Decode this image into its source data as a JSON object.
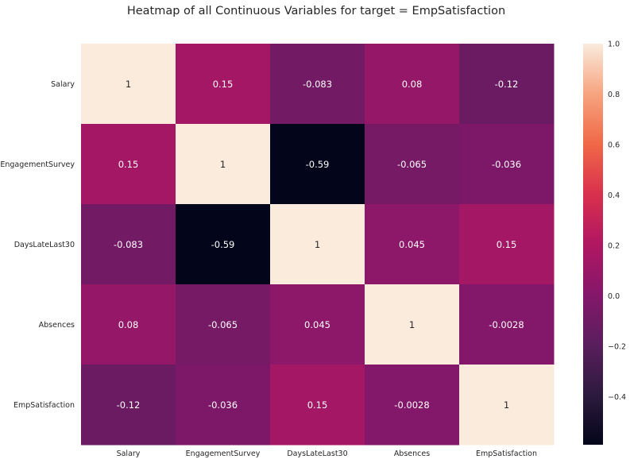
{
  "chart_data": {
    "type": "heatmap",
    "title": "Heatmap of all Continuous Variables for target = EmpSatisfaction",
    "xlabel": "",
    "ylabel": "",
    "x_categories": [
      "Salary",
      "EngagementSurvey",
      "DaysLateLast30",
      "Absences",
      "EmpSatisfaction"
    ],
    "y_categories": [
      "Salary",
      "EngagementSurvey",
      "DaysLateLast30",
      "Absences",
      "EmpSatisfaction"
    ],
    "values": [
      [
        1,
        0.15,
        -0.083,
        0.08,
        -0.12
      ],
      [
        0.15,
        1,
        -0.59,
        -0.065,
        -0.036
      ],
      [
        -0.083,
        -0.59,
        1,
        0.045,
        0.15
      ],
      [
        0.08,
        -0.065,
        0.045,
        1,
        -0.0028
      ],
      [
        -0.12,
        -0.036,
        0.15,
        -0.0028,
        1
      ]
    ],
    "cell_labels": [
      [
        "1",
        "0.15",
        "-0.083",
        "0.08",
        "-0.12"
      ],
      [
        "0.15",
        "1",
        "-0.59",
        "-0.065",
        "-0.036"
      ],
      [
        "-0.083",
        "-0.59",
        "1",
        "0.045",
        "0.15"
      ],
      [
        "0.08",
        "-0.065",
        "0.045",
        "1",
        "-0.0028"
      ],
      [
        "-0.12",
        "-0.036",
        "0.15",
        "-0.0028",
        "1"
      ]
    ],
    "colorbar": {
      "min": -0.59,
      "max": 1.0,
      "ticks": [
        1.0,
        0.8,
        0.6,
        0.4,
        0.2,
        0.0,
        -0.2,
        -0.4
      ],
      "tick_labels": [
        "1.0",
        "0.8",
        "0.6",
        "0.4",
        "0.2",
        "0.0",
        "−0.2",
        "−0.4"
      ],
      "colormap": "rocket",
      "colormap_stops": [
        [
          0.0,
          "#03051a"
        ],
        [
          0.125,
          "#2d1a3e"
        ],
        [
          0.25,
          "#5a1e5d"
        ],
        [
          0.375,
          "#85176a"
        ],
        [
          0.5,
          "#b01762"
        ],
        [
          0.625,
          "#d9304d"
        ],
        [
          0.75,
          "#f06847"
        ],
        [
          0.875,
          "#f6a47f"
        ],
        [
          1.0,
          "#faebdd"
        ]
      ]
    },
    "grid": false,
    "colorbar_position": "right"
  }
}
